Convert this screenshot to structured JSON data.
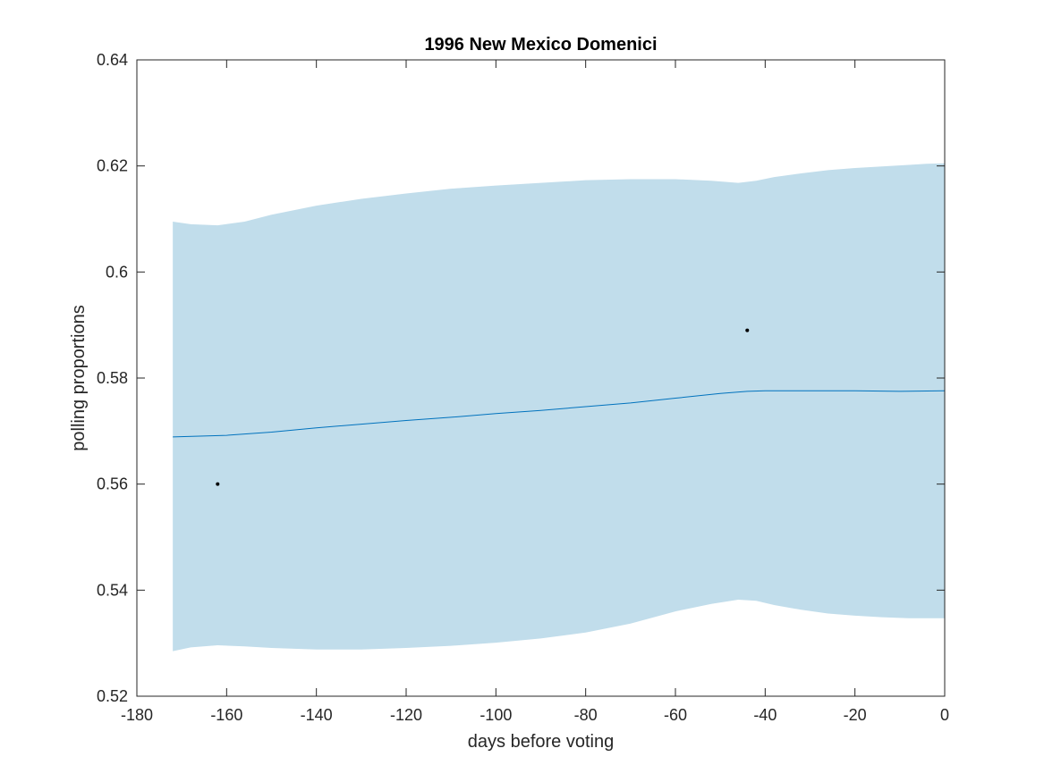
{
  "chart_data": {
    "type": "line",
    "title": "1996 New Mexico Domenici",
    "xlabel": "days before voting",
    "ylabel": "polling proportions",
    "xlim": [
      -180,
      0
    ],
    "ylim": [
      0.52,
      0.64
    ],
    "xticks": [
      -180,
      -160,
      -140,
      -120,
      -100,
      -80,
      -60,
      -40,
      -20,
      0
    ],
    "yticks": [
      0.52,
      0.54,
      0.56,
      0.58,
      0.6,
      0.62,
      0.64
    ],
    "xtick_labels": [
      "-180",
      "-160",
      "-140",
      "-120",
      "-100",
      "-80",
      "-60",
      "-40",
      "-20",
      "0"
    ],
    "ytick_labels": [
      "0.52",
      "0.54",
      "0.56",
      "0.58",
      "0.6",
      "0.62",
      "0.64"
    ],
    "grid": false,
    "series": [
      {
        "kind": "band",
        "color": "#c1ddeb",
        "x": [
          -172,
          -168,
          -162,
          -156,
          -150,
          -140,
          -130,
          -120,
          -110,
          -100,
          -90,
          -80,
          -70,
          -60,
          -52,
          -46,
          -42,
          -38,
          -32,
          -26,
          -20,
          -14,
          -8,
          -4,
          0
        ],
        "upper": [
          0.6095,
          0.609,
          0.6088,
          0.6095,
          0.6108,
          0.6125,
          0.6138,
          0.6148,
          0.6157,
          0.6163,
          0.6168,
          0.6173,
          0.6175,
          0.6175,
          0.6172,
          0.6168,
          0.6172,
          0.6179,
          0.6186,
          0.6192,
          0.6196,
          0.6199,
          0.6202,
          0.6204,
          0.6205
        ],
        "lower": [
          0.5285,
          0.5292,
          0.5296,
          0.5294,
          0.5291,
          0.5288,
          0.5288,
          0.5291,
          0.5295,
          0.5301,
          0.5309,
          0.532,
          0.5337,
          0.536,
          0.5374,
          0.5382,
          0.538,
          0.5372,
          0.5363,
          0.5356,
          0.5352,
          0.5349,
          0.5347,
          0.5347,
          0.5347
        ]
      },
      {
        "kind": "line",
        "color": "#0072bd",
        "x": [
          -172,
          -160,
          -150,
          -140,
          -130,
          -120,
          -110,
          -100,
          -90,
          -80,
          -70,
          -60,
          -50,
          -44,
          -40,
          -30,
          -20,
          -10,
          0
        ],
        "y": [
          0.5689,
          0.5692,
          0.5698,
          0.5706,
          0.5713,
          0.572,
          0.5726,
          0.5733,
          0.5739,
          0.5746,
          0.5753,
          0.5762,
          0.5771,
          0.5775,
          0.5776,
          0.5776,
          0.5776,
          0.5775,
          0.5776
        ]
      },
      {
        "kind": "scatter",
        "color": "#000000",
        "x": [
          -162,
          -44
        ],
        "y": [
          0.56,
          0.589
        ]
      }
    ]
  }
}
